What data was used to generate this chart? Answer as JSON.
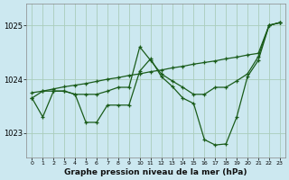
{
  "xlabel": "Graphe pression niveau de la mer (hPa)",
  "background_color": "#cce8f0",
  "grid_color": "#aaccbb",
  "line_color": "#1a5c1a",
  "xlim": [
    -0.5,
    23.5
  ],
  "ylim": [
    1022.55,
    1025.4
  ],
  "yticks": [
    1023,
    1024,
    1025
  ],
  "xticks": [
    0,
    1,
    2,
    3,
    4,
    5,
    6,
    7,
    8,
    9,
    10,
    11,
    12,
    13,
    14,
    15,
    16,
    17,
    18,
    19,
    20,
    21,
    22,
    23
  ],
  "line1_x": [
    0,
    1,
    2,
    3,
    4,
    5,
    6,
    7,
    8,
    9,
    10,
    11,
    12,
    13,
    14,
    15,
    16,
    17,
    18,
    19,
    20,
    21,
    22,
    23
  ],
  "line1_y": [
    1023.75,
    1023.78,
    1023.82,
    1023.86,
    1023.89,
    1023.92,
    1023.96,
    1024.0,
    1024.03,
    1024.07,
    1024.1,
    1024.14,
    1024.17,
    1024.21,
    1024.24,
    1024.28,
    1024.31,
    1024.34,
    1024.38,
    1024.41,
    1024.45,
    1024.48,
    1025.0,
    1025.05
  ],
  "line2_x": [
    0,
    1,
    2,
    3,
    4,
    5,
    6,
    7,
    8,
    9,
    10,
    11,
    12,
    13,
    14,
    15,
    16,
    17,
    18,
    19,
    20,
    21,
    22,
    23
  ],
  "line2_y": [
    1023.65,
    1023.3,
    1023.78,
    1023.78,
    1023.72,
    1023.2,
    1023.2,
    1023.52,
    1023.52,
    1023.52,
    1024.15,
    1024.38,
    1024.05,
    1023.87,
    1023.65,
    1023.55,
    1022.88,
    1022.78,
    1022.8,
    1023.3,
    1024.05,
    1024.35,
    1025.0,
    1025.05
  ],
  "line3_x": [
    0,
    1,
    2,
    3,
    4,
    5,
    6,
    7,
    8,
    9,
    10,
    11,
    12,
    13,
    14,
    15,
    16,
    17,
    18,
    19,
    20,
    21,
    22,
    23
  ],
  "line3_y": [
    1023.65,
    1023.78,
    1023.78,
    1023.78,
    1023.72,
    1023.72,
    1023.72,
    1023.78,
    1023.85,
    1023.85,
    1024.6,
    1024.35,
    1024.1,
    1023.97,
    1023.85,
    1023.72,
    1023.72,
    1023.85,
    1023.85,
    1023.97,
    1024.1,
    1024.42,
    1025.0,
    1025.05
  ]
}
